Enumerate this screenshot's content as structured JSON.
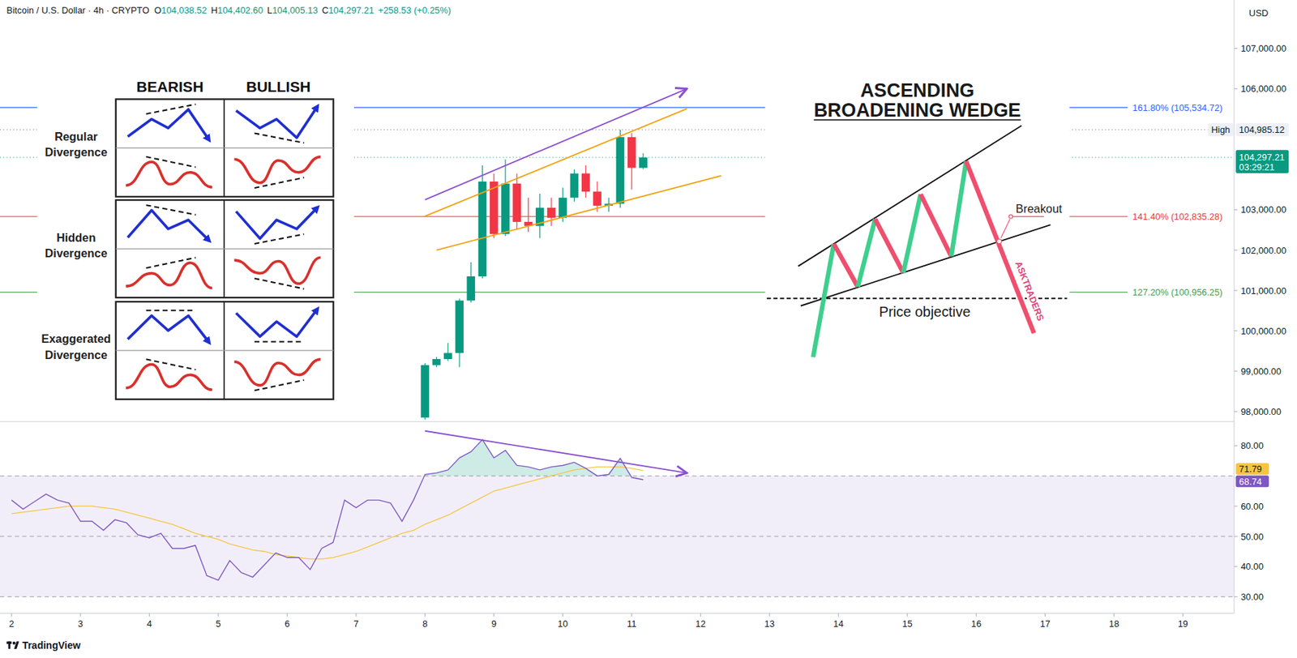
{
  "header": {
    "title": "Bitcoin / U.S. Dollar · 4h · CRYPTO",
    "ohlc": [
      {
        "key": "O",
        "text": "104,038.52"
      },
      {
        "key": "H",
        "text": "104,402.60"
      },
      {
        "key": "L",
        "text": "104,005.13"
      },
      {
        "key": "C",
        "text": "104,297.21"
      }
    ],
    "change": "+258.53 (+0.25%)",
    "currency": "USD"
  },
  "chart_data": [
    {
      "type": "candlestick",
      "x": [
        8,
        8.1667,
        8.3333,
        8.5,
        8.6667,
        8.8333,
        9,
        9.1667,
        9.3333,
        9.5,
        9.6667,
        9.8333,
        10,
        10.1667,
        10.3333,
        10.5,
        10.6667,
        10.8333,
        11,
        11.1667
      ],
      "open": [
        97850,
        99150,
        99300,
        99450,
        100750,
        101350,
        103700,
        102400,
        103650,
        102700,
        102600,
        103050,
        102800,
        103300,
        103900,
        103450,
        103100,
        103150,
        104800,
        104038.52
      ],
      "high": [
        99200,
        99350,
        99700,
        100800,
        101700,
        104100,
        103900,
        104250,
        103900,
        103300,
        103400,
        103300,
        103550,
        104000,
        104100,
        103700,
        103300,
        104985.12,
        104900,
        104402.6
      ],
      "low": [
        97800,
        99100,
        99250,
        99100,
        100700,
        101300,
        102300,
        102350,
        102500,
        102450,
        102300,
        102600,
        102700,
        103200,
        103300,
        102950,
        102950,
        103050,
        103500,
        104005.13
      ],
      "close": [
        99150,
        99300,
        99450,
        100750,
        101350,
        103700,
        102400,
        103650,
        102700,
        102600,
        103050,
        102800,
        103300,
        103900,
        103450,
        103100,
        103150,
        104800,
        104040,
        104297.21
      ],
      "xlim": [
        1.832,
        19.743
      ],
      "ylim": [
        97750,
        108200
      ],
      "yticks": [
        {
          "value": 98000,
          "label": "98,000.00"
        },
        {
          "value": 99000,
          "label": "99,000.00"
        },
        {
          "value": 100000,
          "label": "100,000.00"
        },
        {
          "value": 101000,
          "label": "101,000.00"
        },
        {
          "value": 102000,
          "label": "102,000.00"
        },
        {
          "value": 103000,
          "label": "103,000.00"
        },
        {
          "value": 106000,
          "label": "106,000.00"
        },
        {
          "value": 107000,
          "label": "107,000.00"
        }
      ],
      "price_lines": [
        {
          "label": "161.80% (105,534.72)",
          "value": 105534.72,
          "color": "#2962ff"
        },
        {
          "label": "141.40% (102,835.28)",
          "value": 102835.28,
          "color": "#e53935"
        },
        {
          "label": "127.20% (100,956.25)",
          "value": 100956.25,
          "color": "#43a047"
        }
      ],
      "high_marker": {
        "label": "High",
        "value": 104985.12,
        "value_label": "104,985.12"
      },
      "last_price": {
        "value": 104297.21,
        "value_label": "104,297.21",
        "countdown": "03:29:21"
      },
      "trendlines": [
        {
          "color": "#f2a30f",
          "x": [
            8,
            11.8
          ],
          "y": [
            102840,
            105504
          ]
        },
        {
          "color": "#f2a30f",
          "x": [
            8.1667,
            12.3
          ],
          "y": [
            102000,
            103844
          ]
        },
        {
          "color": "#8b4fd1",
          "x": [
            8,
            11.8
          ],
          "y": [
            103250,
            106000
          ],
          "marker": "arrow"
        }
      ]
    },
    {
      "type": "line",
      "x": [
        2,
        2.1667,
        2.3333,
        2.5,
        2.6667,
        2.8333,
        3,
        3.1667,
        3.3333,
        3.5,
        3.6667,
        3.8333,
        4,
        4.1667,
        4.3333,
        4.5,
        4.6667,
        4.8333,
        5,
        5.1667,
        5.3333,
        5.5,
        5.6667,
        5.8333,
        6,
        6.1667,
        6.3333,
        6.5,
        6.6667,
        6.8333,
        7,
        7.1667,
        7.3333,
        7.5,
        7.6667,
        7.8333,
        8,
        8.1667,
        8.3333,
        8.5,
        8.6667,
        8.8333,
        9,
        9.1667,
        9.3333,
        9.5,
        9.6667,
        9.8333,
        10,
        10.1667,
        10.3333,
        10.5,
        10.6667,
        10.8333,
        11,
        11.1667
      ],
      "series": [
        {
          "color": "#7e57c2",
          "values": [
            62,
            59,
            61.5,
            64,
            62,
            61,
            55,
            55,
            52,
            55.5,
            54.5,
            50.5,
            49.5,
            51,
            46,
            46,
            47,
            37,
            35.5,
            42,
            38,
            36.5,
            40.5,
            44.5,
            43,
            43,
            39,
            46,
            48,
            62,
            59.5,
            62,
            62,
            61,
            55,
            62,
            70.5,
            71,
            72,
            76,
            78,
            82,
            76,
            78.5,
            73.5,
            73,
            72,
            73,
            73.5,
            74.5,
            72.5,
            70,
            70.5,
            75.8,
            69.5,
            68.74
          ]
        },
        {
          "color": "#f5c542",
          "values": [
            57.5,
            58,
            58.5,
            59,
            59.5,
            60,
            60,
            60,
            59.5,
            59,
            58,
            57,
            56,
            55,
            54,
            52.5,
            51,
            50,
            49,
            47.5,
            46.5,
            45.5,
            45,
            44,
            43.5,
            43,
            42.5,
            42.5,
            43,
            44,
            45,
            46.5,
            48,
            49.5,
            51,
            52,
            54,
            55.5,
            57,
            59,
            61,
            63,
            65,
            66,
            67,
            68,
            69,
            70,
            71,
            72,
            72.5,
            73,
            73,
            73,
            72.5,
            71.79
          ]
        }
      ],
      "xlim": [
        1.832,
        19.743
      ],
      "xticks": [
        2,
        3,
        4,
        5,
        6,
        7,
        8,
        9,
        10,
        11,
        12,
        13,
        14,
        15,
        16,
        17,
        18,
        19
      ],
      "ylim": [
        24.5,
        88
      ],
      "yticks": [
        {
          "value": 80,
          "label": "80.00"
        },
        {
          "value": 60,
          "label": "60.00"
        },
        {
          "value": 50,
          "label": "50.00"
        },
        {
          "value": 40,
          "label": "40.00"
        },
        {
          "value": 30,
          "label": "30.00"
        }
      ],
      "levels": [
        70,
        50,
        30
      ],
      "band": [
        30,
        70
      ],
      "trendlines": [
        {
          "color": "#8b4fd1",
          "x": [
            8,
            11.8
          ],
          "y": [
            84.9,
            71
          ],
          "marker": "arrow"
        }
      ]
    }
  ],
  "divergence": {
    "columns": [
      "BEARISH",
      "BULLISH"
    ],
    "rows": [
      "Regular Divergence",
      "Hidden Divergence",
      "Exaggerated Divergence"
    ]
  },
  "wedge": {
    "title": "ASCENDING BROADENING WEDGE",
    "breakout": "Breakout",
    "objective": "Price objective",
    "watermark": "ASKTRADERS"
  },
  "watermark": "TradingView"
}
